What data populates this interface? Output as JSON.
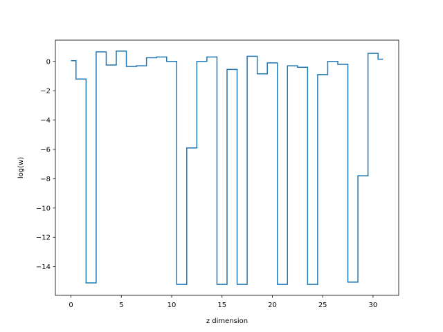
{
  "chart_data": {
    "type": "line",
    "drawstyle": "steps-mid",
    "xlabel": "z dimension",
    "ylabel": "log(w)",
    "xlim": [
      -1.55,
      32.55
    ],
    "ylim": [
      -15.95,
      1.45
    ],
    "xticks": [
      0,
      5,
      10,
      15,
      20,
      25,
      30
    ],
    "yticks": [
      0,
      -2,
      -4,
      -6,
      -8,
      -10,
      -12,
      -14
    ],
    "grid": false,
    "series": [
      {
        "color": "#1f77b4",
        "x": [
          0,
          1,
          2,
          3,
          4,
          5,
          6,
          7,
          8,
          9,
          10,
          11,
          12,
          13,
          14,
          15,
          16,
          17,
          18,
          19,
          20,
          21,
          22,
          23,
          24,
          25,
          26,
          27,
          28,
          29,
          30,
          31
        ],
        "y": [
          0.05,
          -1.2,
          -15.1,
          0.65,
          -0.25,
          0.7,
          -0.35,
          -0.3,
          0.25,
          0.3,
          0.0,
          -15.2,
          -5.9,
          0.0,
          0.3,
          -15.2,
          -0.55,
          -15.2,
          0.35,
          -0.85,
          -0.1,
          -15.2,
          -0.3,
          -0.4,
          -15.2,
          -0.9,
          0.0,
          -0.2,
          -15.05,
          -7.8,
          0.55,
          0.15
        ]
      }
    ]
  }
}
